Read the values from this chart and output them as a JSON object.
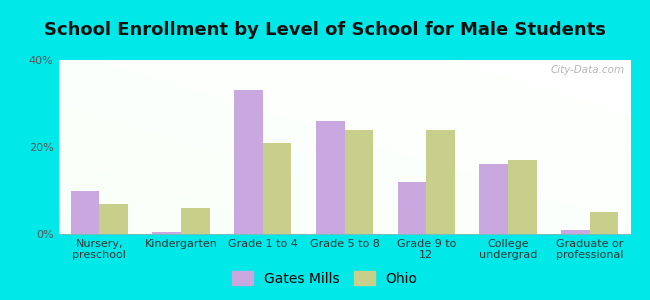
{
  "title": "School Enrollment by Level of School for Male Students",
  "categories": [
    "Nursery,\npreschool",
    "Kindergarten",
    "Grade 1 to 4",
    "Grade 5 to 8",
    "Grade 9 to\n12",
    "College\nundergrad",
    "Graduate or\nprofessional"
  ],
  "gates_mills": [
    10,
    0.5,
    33,
    26,
    12,
    16,
    1
  ],
  "ohio": [
    7,
    6,
    21,
    24,
    24,
    17,
    5
  ],
  "gates_mills_color": "#c9a8e0",
  "ohio_color": "#c8cf8a",
  "background_outer": "#00e8e8",
  "ylim": [
    0,
    40
  ],
  "yticks": [
    0,
    20,
    40
  ],
  "ytick_labels": [
    "0%",
    "20%",
    "40%"
  ],
  "legend_labels": [
    "Gates Mills",
    "Ohio"
  ],
  "bar_width": 0.35,
  "title_fontsize": 13,
  "tick_fontsize": 8,
  "legend_fontsize": 10,
  "watermark": "City-Data.com"
}
